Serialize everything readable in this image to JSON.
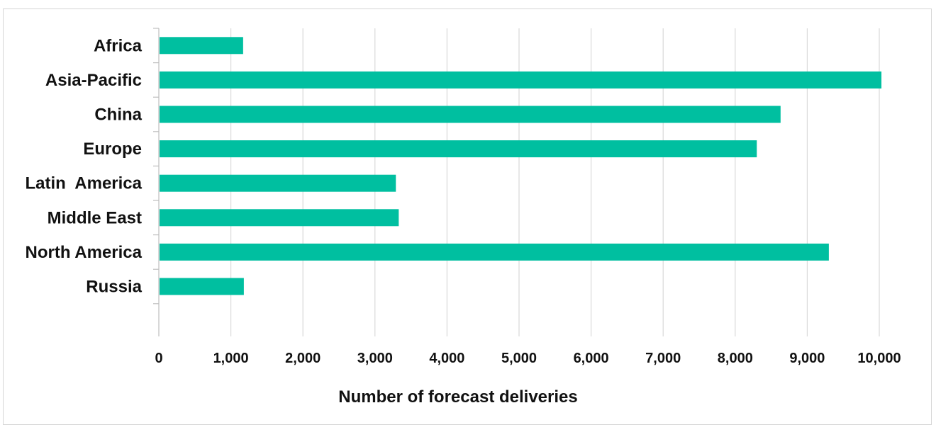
{
  "chart_data": {
    "type": "bar",
    "orientation": "horizontal",
    "categories": [
      "Africa",
      "Asia-Pacific",
      "China",
      "Europe",
      "Latin  America",
      "Middle East",
      "North America",
      "Russia"
    ],
    "values": [
      1170,
      10030,
      8630,
      8300,
      3290,
      3330,
      9300,
      1180
    ],
    "xlabel": "Number of forecast deliveries",
    "ylabel": "",
    "title": "",
    "xlim": [
      0,
      10000
    ],
    "x_ticks": [
      "0",
      "1,000",
      "2,000",
      "3,000",
      "4,000",
      "5,000",
      "6,000",
      "7,000",
      "8,000",
      "9,000",
      "10,000"
    ],
    "grid": "vertical",
    "legend": "none",
    "bar_color": "#00BFA0",
    "grid_color": "#d9d9d9"
  }
}
